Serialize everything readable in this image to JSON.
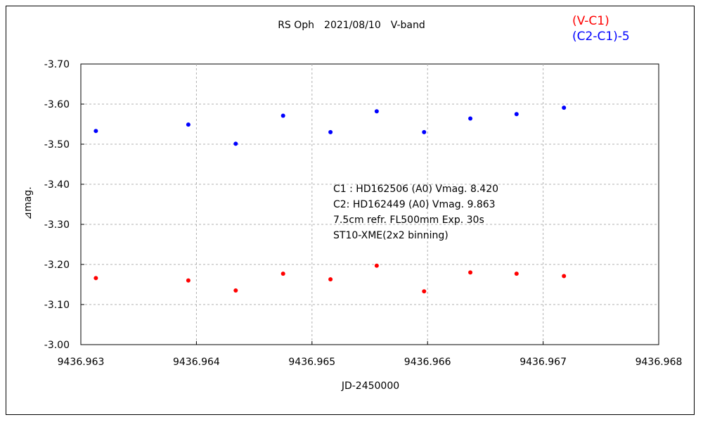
{
  "chart_data": {
    "type": "scatter",
    "title": "RS Oph　2021/08/10　V-band",
    "xlabel": "JD-2450000",
    "ylabel": "⊿mag.",
    "xlim": [
      9436.963,
      9436.968
    ],
    "ylim": [
      -3.0,
      -3.7
    ],
    "y_inverted": true,
    "x_ticks": [
      "9436.963",
      "9436.964",
      "9436.965",
      "9436.966",
      "9436.967",
      "9436.968"
    ],
    "y_ticks": [
      "-3.70",
      "-3.60",
      "-3.50",
      "-3.40",
      "-3.30",
      "-3.20",
      "-3.10",
      "-3.00"
    ],
    "grid": true,
    "legend_position": "top-right",
    "series": [
      {
        "name": "(V-C1)",
        "color": "#ff0000",
        "x": [
          9436.96313,
          9436.96393,
          9436.96434,
          9436.96475,
          9436.96516,
          9436.96556,
          9436.96597,
          9436.96637,
          9436.96677,
          9436.96718
        ],
        "y": [
          -3.166,
          -3.16,
          -3.135,
          -3.177,
          -3.163,
          -3.197,
          -3.133,
          -3.18,
          -3.177,
          -3.171
        ]
      },
      {
        "name": "(C2-C1)-5",
        "color": "#0000ff",
        "x": [
          9436.96313,
          9436.96393,
          9436.96434,
          9436.96475,
          9436.96516,
          9436.96556,
          9436.96597,
          9436.96637,
          9436.96677,
          9436.96718
        ],
        "y": [
          -3.533,
          -3.549,
          -3.501,
          -3.571,
          -3.53,
          -3.582,
          -3.53,
          -3.564,
          -3.575,
          -3.591
        ]
      }
    ],
    "annotations": [
      "C1 : HD162506 (A0) Vmag. 8.420",
      "C2: HD162449 (A0) Vmag. 9.863",
      "7.5cm refr. FL500mm Exp. 30s",
      "ST10-XME(2x2 binning)"
    ]
  }
}
